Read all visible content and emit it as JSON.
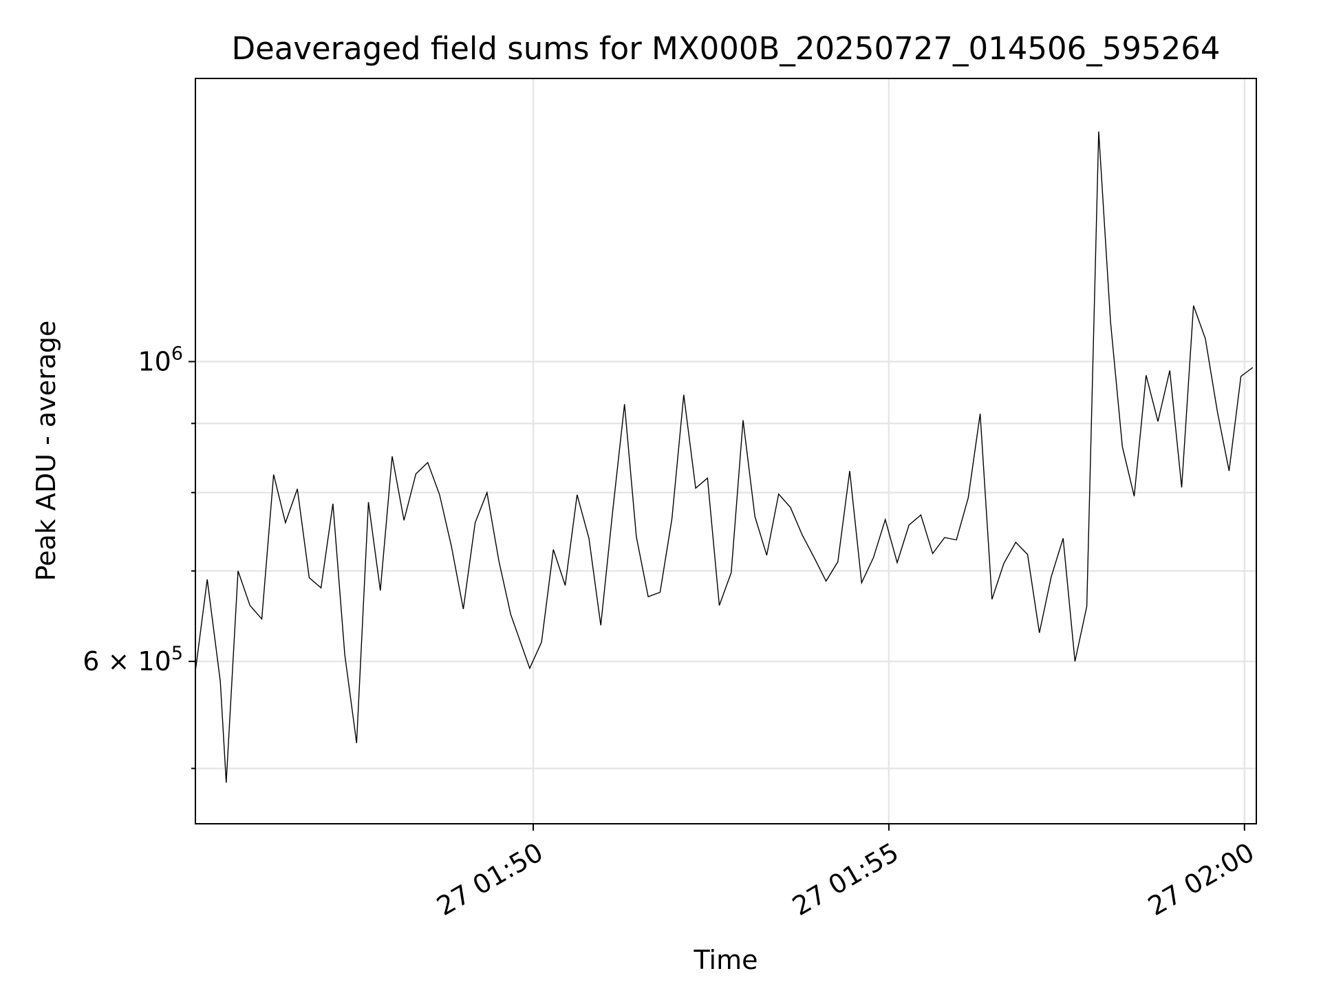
{
  "chart_data": {
    "type": "line",
    "title": "Deaveraged field sums for MX000B_20250727_014506_595264",
    "xlabel": "Time",
    "ylabel": "Peak ADU - average",
    "yscale": "log",
    "ylim": [
      455000,
      1620000
    ],
    "xlim": [
      "2025-07-27 01:45:15",
      "2025-07-27 02:00:10"
    ],
    "grid": true,
    "x_ticks": [
      {
        "value": "2025-07-27 01:50:00",
        "label": "27 01:50"
      },
      {
        "value": "2025-07-27 01:55:00",
        "label": "27 01:55"
      },
      {
        "value": "2025-07-27 02:00:00",
        "label": "27 02:00"
      }
    ],
    "y_major_ticks": [
      {
        "value": 1000000,
        "base": "10",
        "exp": "6",
        "prefix": ""
      },
      {
        "value": 600000,
        "base": "10",
        "exp": "5",
        "prefix": "6 × "
      }
    ],
    "y_minor_gridlines": [
      500000,
      700000,
      800000,
      900000
    ],
    "series": [
      {
        "color": "#000000",
        "x": [
          "2025-07-27 01:45:15",
          "2025-07-27 01:45:25",
          "2025-07-27 01:45:36",
          "2025-07-27 01:45:41",
          "2025-07-27 01:45:51",
          "2025-07-27 01:46:01",
          "2025-07-27 01:46:11",
          "2025-07-27 01:46:21",
          "2025-07-27 01:46:31",
          "2025-07-27 01:46:41",
          "2025-07-27 01:46:51",
          "2025-07-27 01:47:01",
          "2025-07-27 01:47:11",
          "2025-07-27 01:47:21",
          "2025-07-27 01:47:31",
          "2025-07-27 01:47:41",
          "2025-07-27 01:47:51",
          "2025-07-27 01:48:01",
          "2025-07-27 01:48:11",
          "2025-07-27 01:48:21",
          "2025-07-27 01:48:31",
          "2025-07-27 01:48:41",
          "2025-07-27 01:48:51",
          "2025-07-27 01:49:01",
          "2025-07-27 01:49:11",
          "2025-07-27 01:49:21",
          "2025-07-27 01:49:31",
          "2025-07-27 01:49:41",
          "2025-07-27 01:49:57",
          "2025-07-27 01:50:07",
          "2025-07-27 01:50:17",
          "2025-07-27 01:50:27",
          "2025-07-27 01:50:37",
          "2025-07-27 01:50:47",
          "2025-07-27 01:50:57",
          "2025-07-27 01:51:07",
          "2025-07-27 01:51:17",
          "2025-07-27 01:51:27",
          "2025-07-27 01:51:37",
          "2025-07-27 01:51:47",
          "2025-07-27 01:51:57",
          "2025-07-27 01:52:07",
          "2025-07-27 01:52:17",
          "2025-07-27 01:52:27",
          "2025-07-27 01:52:37",
          "2025-07-27 01:52:47",
          "2025-07-27 01:52:57",
          "2025-07-27 01:53:07",
          "2025-07-27 01:53:17",
          "2025-07-27 01:53:27",
          "2025-07-27 01:53:37",
          "2025-07-27 01:53:47",
          "2025-07-27 01:53:57",
          "2025-07-27 01:54:07",
          "2025-07-27 01:54:17",
          "2025-07-27 01:54:27",
          "2025-07-27 01:54:37",
          "2025-07-27 01:54:47",
          "2025-07-27 01:54:57",
          "2025-07-27 01:55:07",
          "2025-07-27 01:55:17",
          "2025-07-27 01:55:27",
          "2025-07-27 01:55:37",
          "2025-07-27 01:55:47",
          "2025-07-27 01:55:57",
          "2025-07-27 01:56:07",
          "2025-07-27 01:56:17",
          "2025-07-27 01:56:27",
          "2025-07-27 01:56:37",
          "2025-07-27 01:56:47",
          "2025-07-27 01:56:57",
          "2025-07-27 01:57:07",
          "2025-07-27 01:57:17",
          "2025-07-27 01:57:27",
          "2025-07-27 01:57:37",
          "2025-07-27 01:57:47",
          "2025-07-27 01:57:57",
          "2025-07-27 01:58:07",
          "2025-07-27 01:58:17",
          "2025-07-27 01:58:27",
          "2025-07-27 01:58:37",
          "2025-07-27 01:58:47",
          "2025-07-27 01:58:57",
          "2025-07-27 01:59:07",
          "2025-07-27 01:59:17",
          "2025-07-27 01:59:27",
          "2025-07-27 01:59:37",
          "2025-07-27 01:59:47",
          "2025-07-27 01:59:57",
          "2025-07-27 02:00:07"
        ],
        "y": [
          590000,
          690000,
          580000,
          488000,
          700000,
          660000,
          645000,
          825000,
          760000,
          805000,
          692000,
          680000,
          785000,
          607000,
          522000,
          787000,
          677000,
          851000,
          763000,
          826000,
          842000,
          797000,
          730000,
          656000,
          760000,
          800000,
          712000,
          650000,
          593000,
          620000,
          726000,
          683000,
          797000,
          740000,
          638000,
          775000,
          930000,
          742000,
          670000,
          675000,
          765000,
          945000,
          806000,
          820000,
          660000,
          698000,
          905000,
          768000,
          719000,
          798000,
          780000,
          744000,
          716000,
          688000,
          711000,
          830000,
          686000,
          716000,
          764000,
          710000,
          757000,
          770000,
          721000,
          741000,
          738000,
          793000,
          915000,
          667000,
          709000,
          735000,
          720000,
          630000,
          693000,
          740000,
          600000,
          659000,
          1480000,
          1070000,
          865000,
          795000,
          977000,
          903000,
          985000,
          807000,
          1100000,
          1040000,
          920000,
          830000,
          975000,
          990000
        ]
      }
    ]
  }
}
